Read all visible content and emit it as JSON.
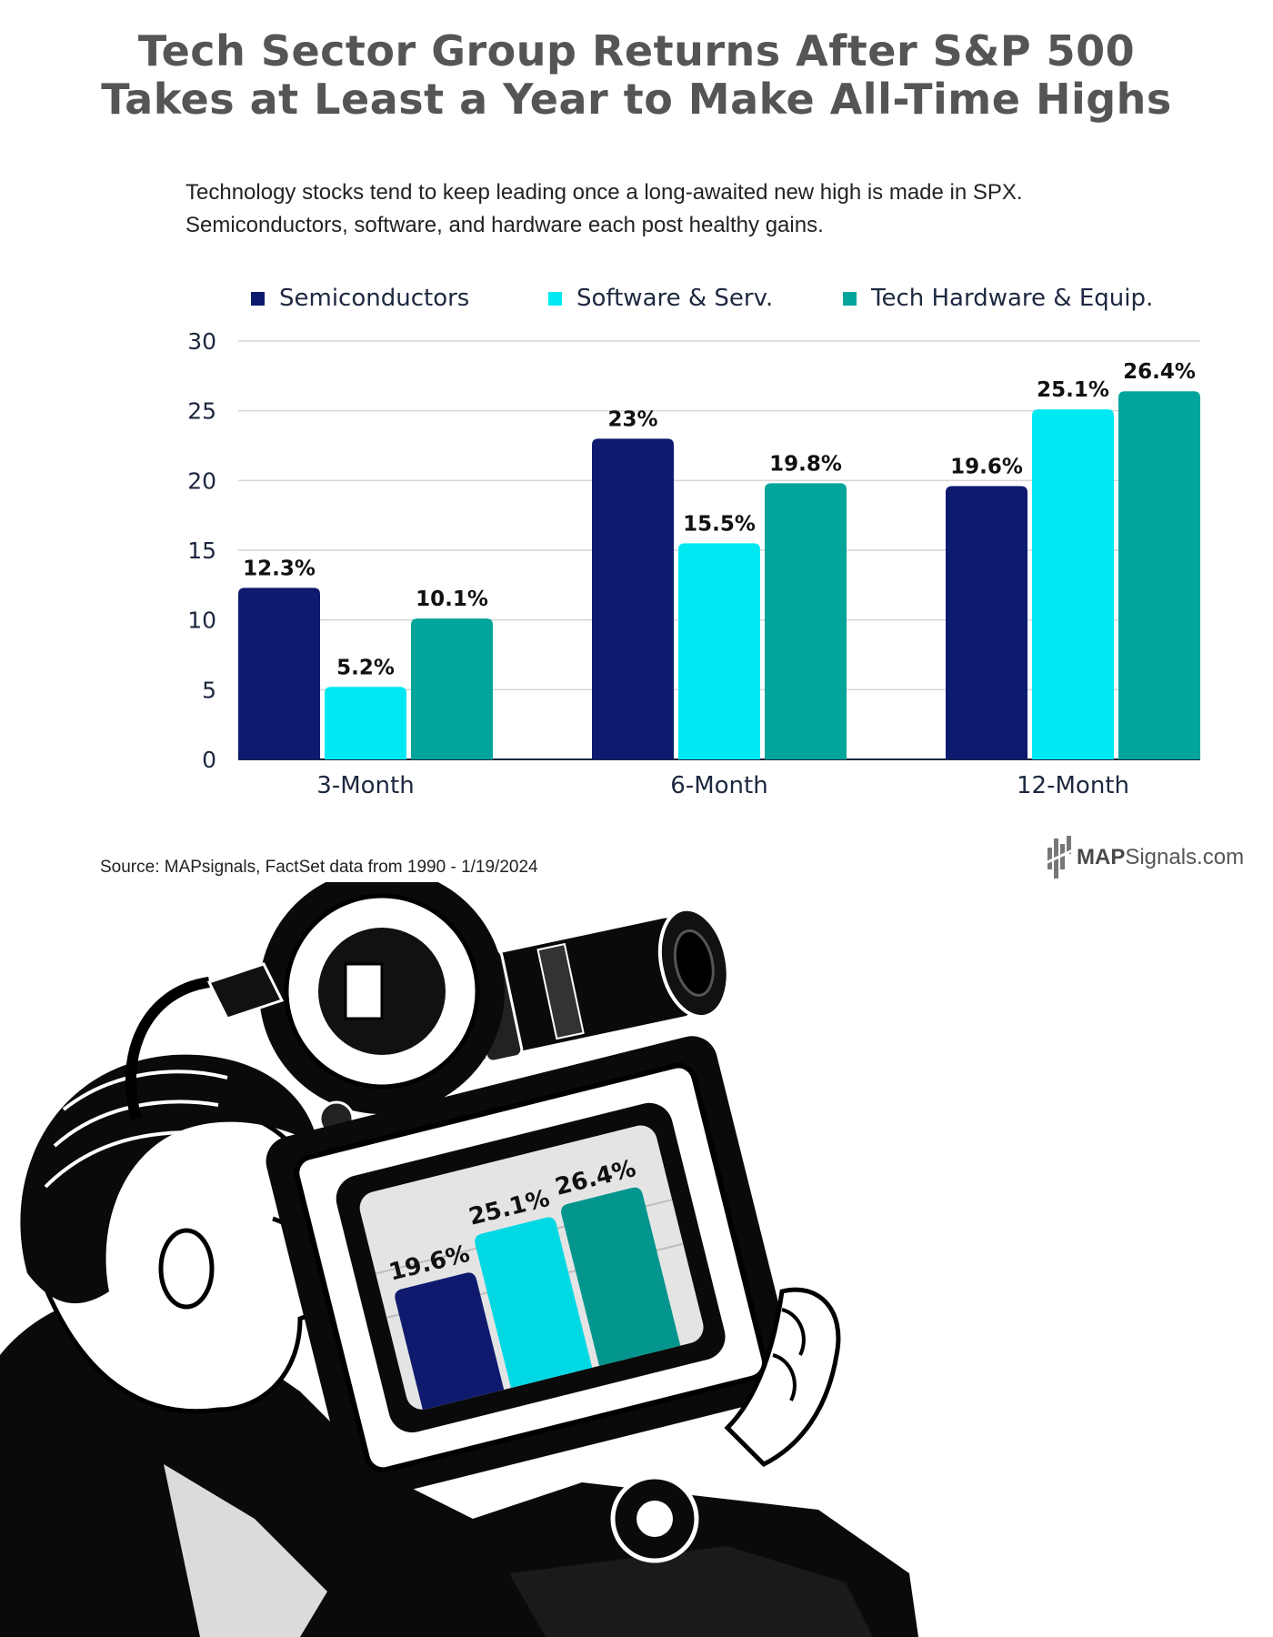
{
  "title_lines": [
    "Tech Sector Group Returns After S&P 500",
    "Takes at Least a Year to Make All-Time Highs"
  ],
  "subtitle_lines": [
    "Technology stocks tend to keep leading once a long-awaited new high is made in SPX.",
    "Semiconductors, software, and hardware each post healthy gains."
  ],
  "source": "Source: MAPsignals, FactSet data from 1990 - 1/19/2024",
  "brand": {
    "bold": "MAP",
    "thin": "Signals.com"
  },
  "chart_data": {
    "type": "bar",
    "title": "Tech Sector Group Returns After S&P 500 Takes at Least a Year to Make All-Time Highs",
    "xlabel": "",
    "ylabel": "",
    "categories": [
      "3-Month",
      "6-Month",
      "12-Month"
    ],
    "series": [
      {
        "name": "Semiconductors",
        "color": "#0d1a6e",
        "values": [
          12.3,
          23,
          19.6
        ],
        "labels": [
          "12.3%",
          "23%",
          "19.6%"
        ]
      },
      {
        "name": "Software & Serv.",
        "color": "#00e9f2",
        "values": [
          5.2,
          15.5,
          25.1
        ],
        "labels": [
          "5.2%",
          "15.5%",
          "25.1%"
        ]
      },
      {
        "name": "Tech Hardware & Equip.",
        "color": "#02a59c",
        "values": [
          10.1,
          19.8,
          26.4
        ],
        "labels": [
          "10.1%",
          "19.8%",
          "26.4%"
        ]
      }
    ],
    "ylim": [
      0,
      30
    ],
    "yticks": [
      0,
      5,
      10,
      15,
      20,
      25,
      30
    ],
    "grid": true,
    "legend": "top"
  },
  "inset": {
    "labels": [
      "19.6%",
      "25.1%",
      "26.4%"
    ],
    "values": [
      19.6,
      25.1,
      26.4
    ],
    "colors": [
      "#0d1a6e",
      "#00d8e3",
      "#02958d"
    ]
  }
}
